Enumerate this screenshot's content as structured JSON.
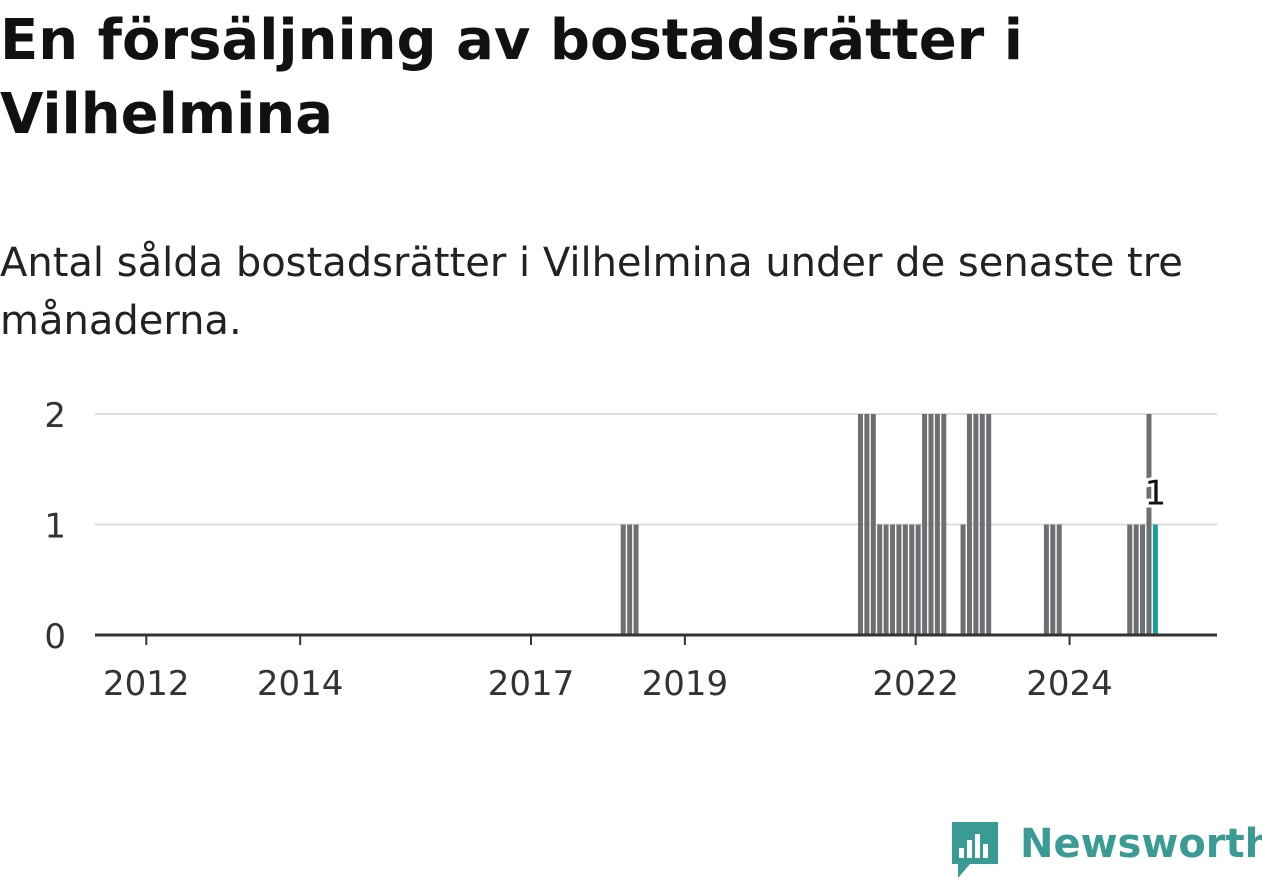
{
  "title": "En försäljning av bostadsrätter i Vilhelmina",
  "subtitle": "Antal sålda bostadsrätter i Vilhelmina under de senaste tre månaderna.",
  "brand": "Newsworthy",
  "colors": {
    "bar": "#6e6e73",
    "highlight": "#1a9e96",
    "grid": "#dddddd",
    "axis": "#333333",
    "brand": "#3a9a94"
  },
  "icons": [
    "newsworthy-logo-icon"
  ],
  "chart_data": {
    "type": "bar",
    "x_type": "time",
    "x_ticks": [
      "2012",
      "2014",
      "2017",
      "2019",
      "2022",
      "2024"
    ],
    "y_ticks": [
      "0",
      "1",
      "2"
    ],
    "ylim": [
      0,
      2
    ],
    "xlim": [
      "2011-05",
      "2025-12"
    ],
    "grid": true,
    "highlight_label": "1",
    "series": [
      {
        "values": [
          [
            "2018-03",
            1
          ],
          [
            "2018-04",
            1
          ],
          [
            "2018-05",
            1
          ],
          [
            "2021-04",
            2
          ],
          [
            "2021-05",
            2
          ],
          [
            "2021-06",
            2
          ],
          [
            "2021-07",
            1
          ],
          [
            "2021-08",
            1
          ],
          [
            "2021-09",
            1
          ],
          [
            "2021-10",
            1
          ],
          [
            "2021-11",
            1
          ],
          [
            "2021-12",
            1
          ],
          [
            "2022-01",
            1
          ],
          [
            "2022-02",
            2
          ],
          [
            "2022-03",
            2
          ],
          [
            "2022-04",
            2
          ],
          [
            "2022-05",
            2
          ],
          [
            "2022-08",
            1
          ],
          [
            "2022-09",
            2
          ],
          [
            "2022-10",
            2
          ],
          [
            "2022-11",
            2
          ],
          [
            "2022-12",
            2
          ],
          [
            "2023-09",
            1
          ],
          [
            "2023-10",
            1
          ],
          [
            "2023-11",
            1
          ],
          [
            "2024-10",
            1
          ],
          [
            "2024-11",
            1
          ],
          [
            "2024-12",
            1
          ],
          [
            "2025-01",
            2
          ]
        ]
      }
    ],
    "highlight": [
      "2025-02",
      1
    ]
  }
}
